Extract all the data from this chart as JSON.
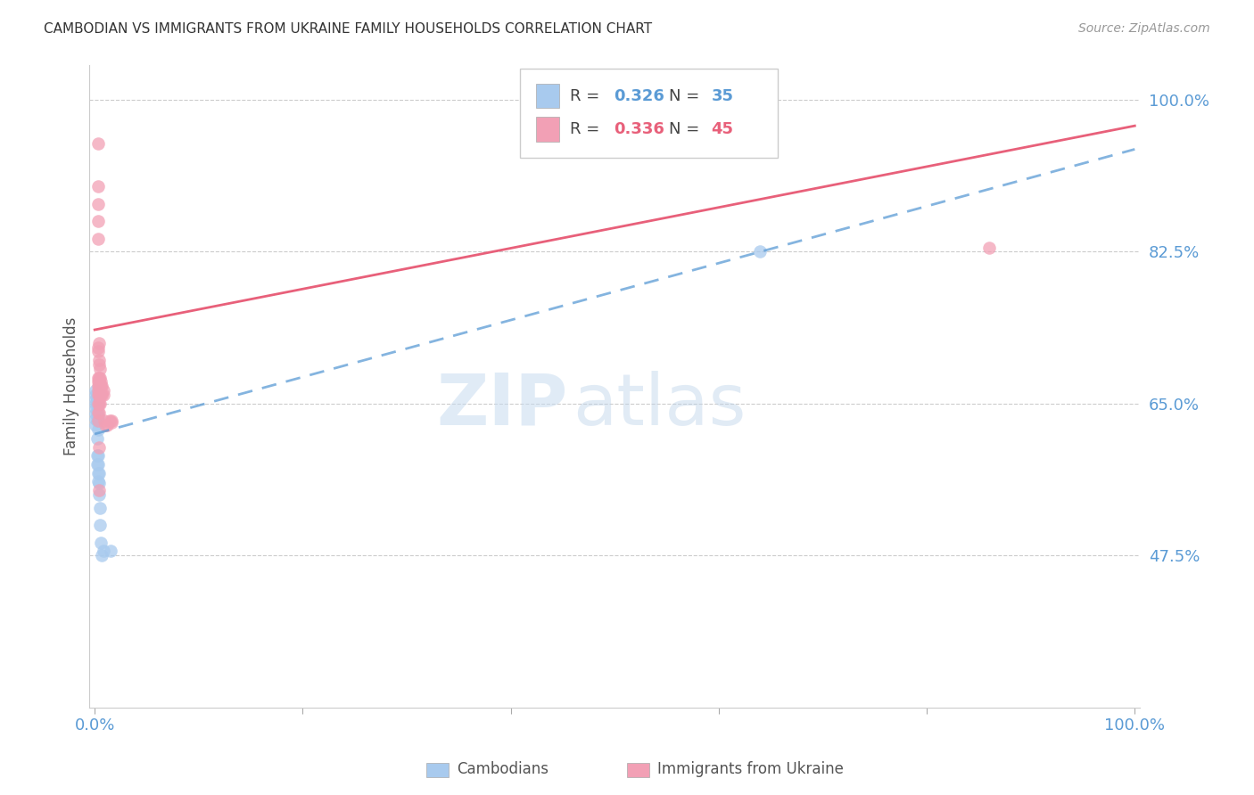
{
  "title": "CAMBODIAN VS IMMIGRANTS FROM UKRAINE FAMILY HOUSEHOLDS CORRELATION CHART",
  "source": "Source: ZipAtlas.com",
  "ylabel": "Family Households",
  "ytick_labels": [
    "100.0%",
    "82.5%",
    "65.0%",
    "47.5%"
  ],
  "ytick_values": [
    1.0,
    0.825,
    0.65,
    0.475
  ],
  "ymin": 0.3,
  "ymax": 1.04,
  "xmin": -0.005,
  "xmax": 1.005,
  "legend_R1": "R = 0.326",
  "legend_N1": "N = 35",
  "legend_R2": "R = 0.336",
  "legend_N2": "N = 45",
  "color_cambodian": "#A8CAEE",
  "color_ukraine": "#F2A0B5",
  "color_line_cambodian": "#5B9BD5",
  "color_line_ukraine": "#E8607A",
  "color_title": "#333333",
  "color_source": "#999999",
  "color_yticklabels": "#5B9BD5",
  "color_xticklabels": "#5B9BD5",
  "background_color": "#FFFFFF",
  "watermark_zip": "ZIP",
  "watermark_atlas": "atlas",
  "blue_line_x0": 0.0,
  "blue_line_y0": 0.615,
  "blue_line_x1": 1.0,
  "blue_line_y1": 0.943,
  "pink_line_x0": 0.0,
  "pink_line_y0": 0.735,
  "pink_line_x1": 1.0,
  "pink_line_y1": 0.97,
  "cambodian_x": [
    0.001,
    0.001,
    0.001,
    0.001,
    0.001,
    0.001,
    0.001,
    0.001,
    0.002,
    0.002,
    0.002,
    0.002,
    0.002,
    0.002,
    0.002,
    0.002,
    0.003,
    0.003,
    0.003,
    0.003,
    0.003,
    0.003,
    0.003,
    0.004,
    0.004,
    0.004,
    0.004,
    0.005,
    0.005,
    0.005,
    0.006,
    0.007,
    0.008,
    0.015,
    0.64
  ],
  "cambodian_y": [
    0.625,
    0.632,
    0.638,
    0.645,
    0.65,
    0.655,
    0.66,
    0.665,
    0.58,
    0.59,
    0.61,
    0.63,
    0.64,
    0.65,
    0.655,
    0.66,
    0.56,
    0.57,
    0.58,
    0.59,
    0.62,
    0.635,
    0.65,
    0.545,
    0.558,
    0.57,
    0.66,
    0.51,
    0.53,
    0.66,
    0.49,
    0.475,
    0.48,
    0.48,
    0.825
  ],
  "ukraine_x": [
    0.003,
    0.003,
    0.003,
    0.003,
    0.003,
    0.003,
    0.003,
    0.003,
    0.004,
    0.004,
    0.004,
    0.004,
    0.004,
    0.004,
    0.005,
    0.005,
    0.005,
    0.005,
    0.006,
    0.006,
    0.006,
    0.007,
    0.007,
    0.008,
    0.008,
    0.009,
    0.01,
    0.012,
    0.014,
    0.016,
    0.016,
    0.003,
    0.003,
    0.004,
    0.004,
    0.005,
    0.003,
    0.003,
    0.003,
    0.003,
    0.003,
    0.004,
    0.004,
    0.004,
    0.86
  ],
  "ukraine_y": [
    0.63,
    0.64,
    0.65,
    0.66,
    0.665,
    0.67,
    0.675,
    0.68,
    0.64,
    0.65,
    0.66,
    0.67,
    0.675,
    0.68,
    0.65,
    0.66,
    0.67,
    0.68,
    0.66,
    0.67,
    0.675,
    0.66,
    0.67,
    0.66,
    0.665,
    0.63,
    0.625,
    0.625,
    0.63,
    0.63,
    0.628,
    0.71,
    0.715,
    0.7,
    0.695,
    0.69,
    0.84,
    0.86,
    0.88,
    0.9,
    0.95,
    0.55,
    0.6,
    0.72,
    0.83
  ]
}
